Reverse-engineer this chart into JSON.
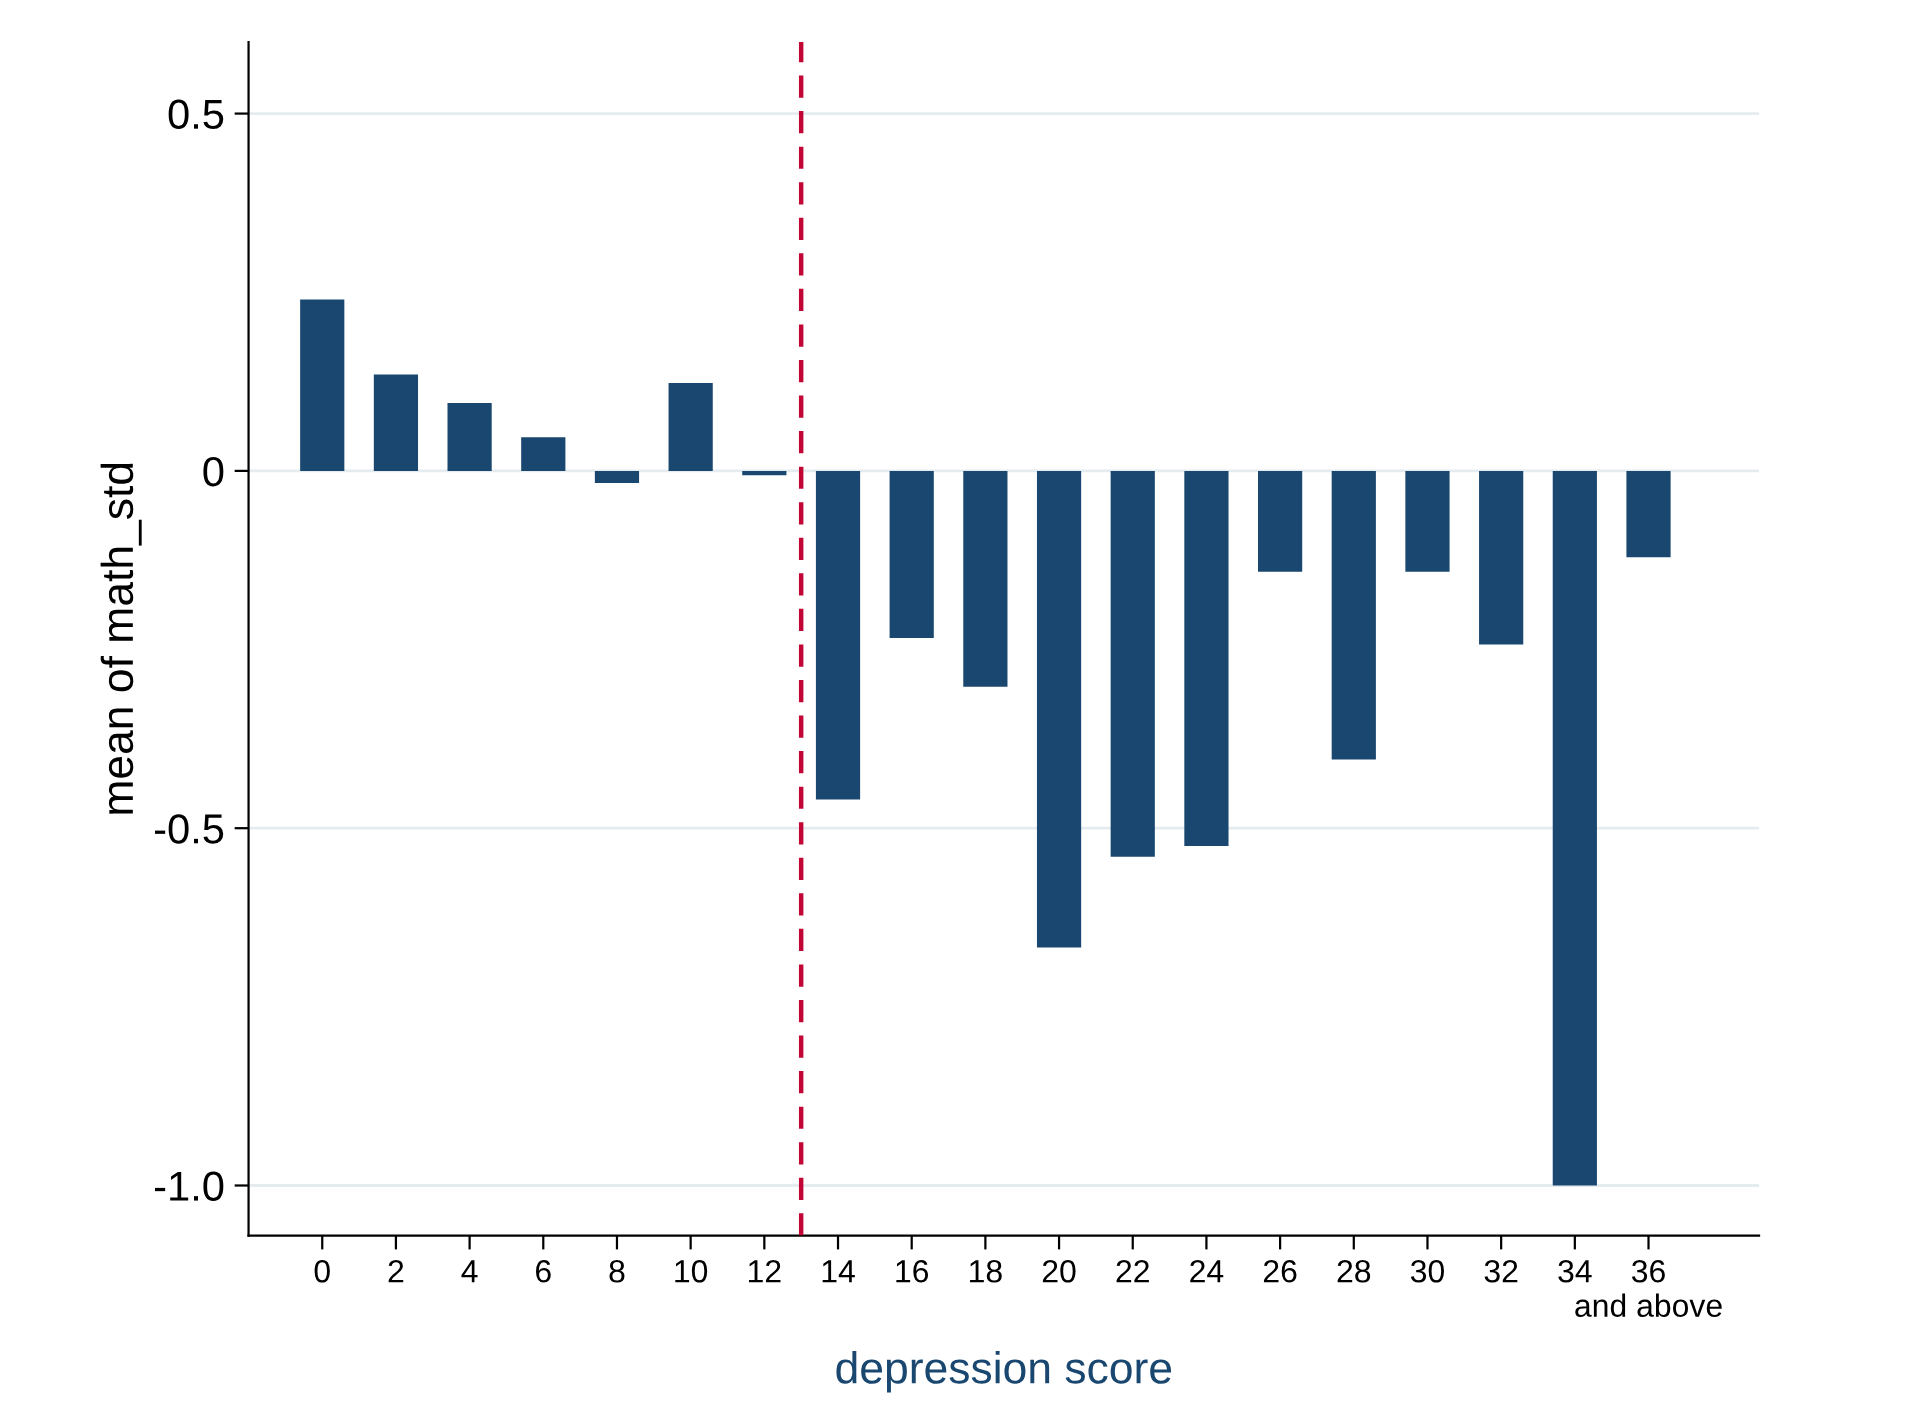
{
  "chart_data": {
    "type": "bar",
    "xlabel": "depression score",
    "ylabel": "mean of math_std",
    "x": [
      0,
      2,
      4,
      6,
      8,
      10,
      12,
      14,
      16,
      18,
      20,
      22,
      24,
      26,
      28,
      30,
      32,
      34,
      36
    ],
    "values": [
      0.24,
      0.135,
      0.095,
      0.047,
      -0.017,
      0.123,
      -0.006,
      -0.46,
      -0.234,
      -0.302,
      -0.667,
      -0.54,
      -0.525,
      -0.141,
      -0.404,
      -0.141,
      -0.243,
      -1.0,
      -0.121
    ],
    "color": "#1a476f",
    "xlim": [
      -2,
      39
    ],
    "xticks": [
      0,
      2,
      4,
      6,
      8,
      10,
      12,
      14,
      16,
      18,
      20,
      22,
      24,
      26,
      28,
      30,
      32,
      34,
      {
        "value": 36,
        "label": "36 and above"
      }
    ],
    "ylim": [
      -1.07,
      0.6
    ],
    "yticks": [
      {
        "value": 0.5,
        "label": "0.5"
      },
      0,
      {
        "value": -0.5,
        "label": "-0.5"
      },
      {
        "value": -1.0,
        "label": "-1.0"
      }
    ],
    "grid": "y",
    "ref_lines": [
      {
        "axis": "x",
        "value": 13,
        "color": "#c10534",
        "line_style": "dashed"
      }
    ]
  }
}
